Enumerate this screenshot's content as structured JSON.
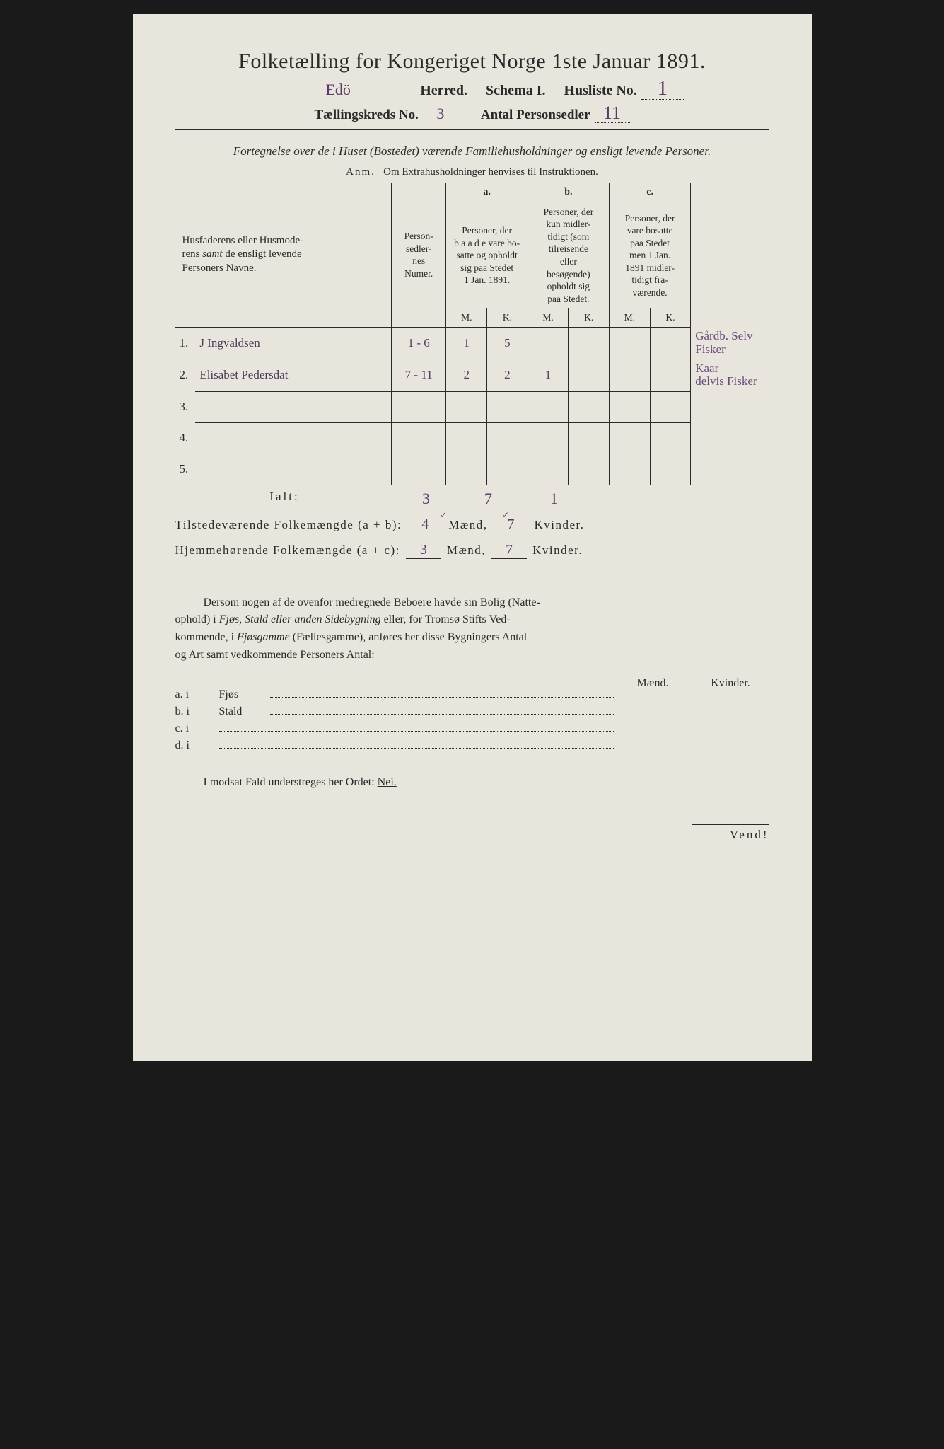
{
  "title": "Folketælling for Kongeriget Norge 1ste Januar 1891.",
  "header": {
    "herred_value": "Edö",
    "herred_label": "Herred.",
    "schema_label": "Schema I.",
    "husliste_label": "Husliste No.",
    "husliste_value": "1",
    "kreds_label": "Tællingskreds No.",
    "kreds_value": "3",
    "antal_label": "Antal Personsedler",
    "antal_value": "11"
  },
  "subtitle": "Fortegnelse over de i Huset (Bostedet) værende Familiehusholdninger og ensligt levende Personer.",
  "anm_label": "Anm.",
  "anm_text": "Om Extrahusholdninger henvises til Instruktionen.",
  "columns": {
    "names": "Husfaderens eller Husmoderens samt de ensligt levende Personers Navne.",
    "numer": "Person-sedler-nes Numer.",
    "a_letter": "a.",
    "a_text": "Personer, der baade vare bosatte og opholdt sig paa Stedet 1 Jan. 1891.",
    "b_letter": "b.",
    "b_text": "Personer, der kun midlertidigt (som tilreisende eller besøgende) opholdt sig paa Stedet.",
    "c_letter": "c.",
    "c_text": "Personer, der vare bosatte paa Stedet men 1 Jan. 1891 midlertidigt fraværende.",
    "M": "M.",
    "K": "K."
  },
  "rows": [
    {
      "n": "1.",
      "name": "J Ingvaldsen",
      "numer": "1 - 6",
      "aM": "1",
      "aK": "5",
      "bM": "",
      "bK": "",
      "cM": "",
      "cK": "",
      "note": "Gårdb. Selv\nFisker"
    },
    {
      "n": "2.",
      "name": "Elisabet Pedersdat",
      "numer": "7 - 11",
      "aM": "2",
      "aK": "2",
      "bM": "1",
      "bK": "",
      "cM": "",
      "cK": "",
      "note": "Kaar\ndelvis Fisker"
    },
    {
      "n": "3.",
      "name": "",
      "numer": "",
      "aM": "",
      "aK": "",
      "bM": "",
      "bK": "",
      "cM": "",
      "cK": "",
      "note": ""
    },
    {
      "n": "4.",
      "name": "",
      "numer": "",
      "aM": "",
      "aK": "",
      "bM": "",
      "bK": "",
      "cM": "",
      "cK": "",
      "note": ""
    },
    {
      "n": "5.",
      "name": "",
      "numer": "",
      "aM": "",
      "aK": "",
      "bM": "",
      "bK": "",
      "cM": "",
      "cK": "",
      "note": ""
    }
  ],
  "ialt": {
    "label": "Ialt:",
    "aM": "3",
    "aK": "7",
    "bM": "1"
  },
  "sums": {
    "tilstede_label": "Tilstedeværende Folkemængde (a + b):",
    "tilstede_M": "4",
    "tilstede_K": "7",
    "hjemme_label": "Hjemmehørende Folkemængde (a + c):",
    "hjemme_M": "3",
    "hjemme_K": "7",
    "maend": "Mænd,",
    "kvinder": "Kvinder."
  },
  "para": "Dersom nogen af de ovenfor medregnede Beboere havde sin Bolig (Natteophold) i Fjøs, Stald eller anden Sidebygning eller, for Tromsø Stifts Vedkommende, i Fjøsgamme (Fællesgamme), anføres her disse Bygningers Antal og Art samt vedkommende Personers Antal:",
  "side": {
    "maend": "Mænd.",
    "kvinder": "Kvinder.",
    "a": "a.  i",
    "a_label": "Fjøs",
    "b": "b.  i",
    "b_label": "Stald",
    "c": "c.  i",
    "d": "d.  i"
  },
  "modsat": "I modsat Fald understreges her Ordet:",
  "nei": "Nei.",
  "vend": "Vend!",
  "colors": {
    "paper": "#e8e6dc",
    "ink": "#2a2a2a",
    "handwriting": "#5a3a6a"
  }
}
